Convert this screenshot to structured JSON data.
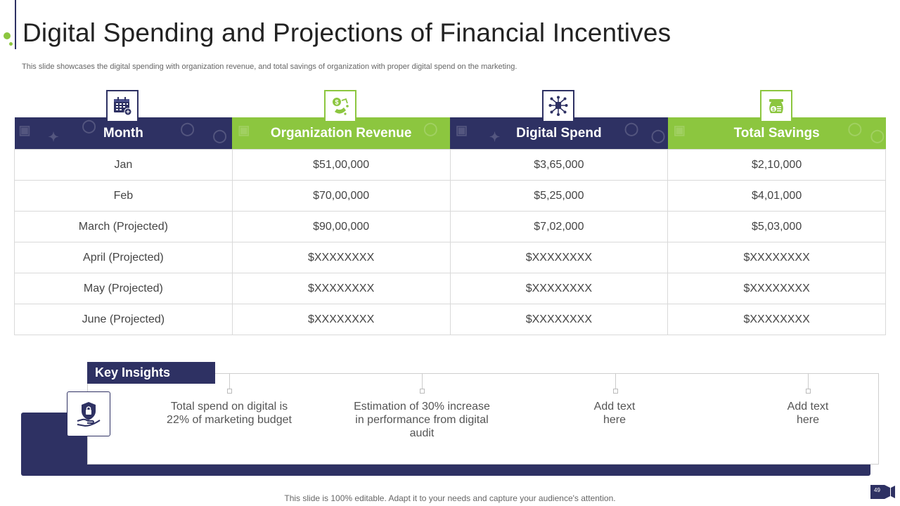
{
  "title": "Digital Spending and Projections of Financial Incentives",
  "subtitle": "This slide showcases the digital spending with organization revenue, and total savings of organization with proper digital spend on the marketing.",
  "table": {
    "headers": [
      "Month",
      "Organization Revenue",
      "Digital Spend",
      "Total Savings"
    ],
    "header_icons": [
      "calendar-icon",
      "revenue-growth-icon",
      "digital-network-icon",
      "money-bag-icon"
    ],
    "rows": [
      [
        "Jan",
        "$51,00,000",
        "$3,65,000",
        "$2,10,000"
      ],
      [
        "Feb",
        "$70,00,000",
        "$5,25,000",
        "$4,01,000"
      ],
      [
        "March (Projected)",
        "$90,00,000",
        "$7,02,000",
        "$5,03,000"
      ],
      [
        "April (Projected)",
        "$XXXXXXXX",
        "$XXXXXXXX",
        "$XXXXXXXX"
      ],
      [
        "May (Projected)",
        "$XXXXXXXX",
        "$XXXXXXXX",
        "$XXXXXXXX"
      ],
      [
        "June (Projected)",
        "$XXXXXXXX",
        "$XXXXXXXX",
        "$XXXXXXXX"
      ]
    ]
  },
  "insights": {
    "label": "Key Insights",
    "icon": "shield-hand-icon",
    "items": [
      "Total spend on digital is 22% of marketing budget",
      "Estimation of 30% increase in performance from digital audit",
      "Add text here",
      "Add text here"
    ]
  },
  "footer": "This slide is 100% editable. Adapt it to your needs and capture your audience's attention.",
  "page_number": "49",
  "colors": {
    "navy": "#2e3163",
    "green": "#8cc63f"
  }
}
